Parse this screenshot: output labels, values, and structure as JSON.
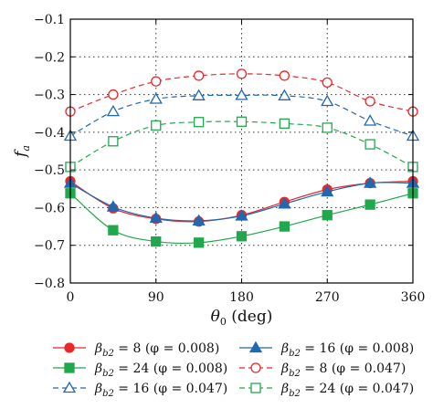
{
  "chart_data": {
    "type": "line",
    "xlabel": "θ0 (deg)",
    "xlabel_main": "θ",
    "xlabel_sub": "0",
    "xlabel_tail": " (deg)",
    "ylabel": "fa",
    "ylabel_main": "f",
    "ylabel_sub": "a",
    "xlim": [
      0,
      360
    ],
    "ylim": [
      -0.8,
      -0.1
    ],
    "xticks": [
      0,
      90,
      180,
      270,
      360
    ],
    "yticks": [
      -0.1,
      -0.2,
      -0.3,
      -0.4,
      -0.5,
      -0.6,
      -0.7,
      -0.8
    ],
    "ytick_labels": [
      "−0.1",
      "−0.2",
      "−0.3",
      "−0.4",
      "−0.5",
      "−0.6",
      "−0.7",
      "−0.8"
    ],
    "grid": true,
    "legend_position": "bottom",
    "series": [
      {
        "name": "βb2 = 8 (φ = 0.008)",
        "label_main": "β",
        "label_sub": "b2",
        "label_tail": " = 8 (φ = 0.008)",
        "color": "#e8282b",
        "marker": "circle-filled",
        "dash": "solid",
        "x": [
          0,
          45,
          90,
          135,
          180,
          225,
          270,
          315,
          360
        ],
        "y": [
          -0.53,
          -0.602,
          -0.63,
          -0.637,
          -0.62,
          -0.585,
          -0.552,
          -0.535,
          -0.53
        ]
      },
      {
        "name": "βb2 = 16 (φ = 0.008)",
        "label_main": "β",
        "label_sub": "b2",
        "label_tail": " = 16 (φ = 0.008)",
        "color": "#2068b0",
        "marker": "triangle-filled",
        "dash": "solid",
        "x": [
          0,
          45,
          90,
          135,
          180,
          225,
          270,
          315,
          360
        ],
        "y": [
          -0.535,
          -0.598,
          -0.628,
          -0.635,
          -0.622,
          -0.59,
          -0.558,
          -0.535,
          -0.535
        ]
      },
      {
        "name": "βb2 = 24 (φ = 0.008)",
        "label_main": "β",
        "label_sub": "b2",
        "label_tail": " = 24 (φ = 0.008)",
        "color": "#21a84c",
        "marker": "square-filled",
        "dash": "solid",
        "x": [
          0,
          45,
          90,
          135,
          180,
          225,
          270,
          315,
          360
        ],
        "y": [
          -0.562,
          -0.66,
          -0.69,
          -0.693,
          -0.676,
          -0.65,
          -0.62,
          -0.592,
          -0.562
        ]
      },
      {
        "name": "βb2 = 8 (φ = 0.047)",
        "label_main": "β",
        "label_sub": "b2",
        "label_tail": " = 8 (φ = 0.047)",
        "color": "#e8282b",
        "marker": "circle-open",
        "dash": "dashed",
        "x": [
          0,
          45,
          90,
          135,
          180,
          225,
          270,
          315,
          360
        ],
        "y": [
          -0.345,
          -0.3,
          -0.265,
          -0.25,
          -0.245,
          -0.25,
          -0.268,
          -0.318,
          -0.345
        ]
      },
      {
        "name": "βb2 = 16 (φ = 0.047)",
        "label_main": "β",
        "label_sub": "b2",
        "label_tail": " = 16 (φ = 0.047)",
        "color": "#2068b0",
        "marker": "triangle-open",
        "dash": "dashed",
        "x": [
          0,
          45,
          90,
          135,
          180,
          225,
          270,
          315,
          360
        ],
        "y": [
          -0.41,
          -0.345,
          -0.312,
          -0.303,
          -0.302,
          -0.303,
          -0.318,
          -0.37,
          -0.41
        ]
      },
      {
        "name": "βb2 = 24 (φ = 0.047)",
        "label_main": "β",
        "label_sub": "b2",
        "label_tail": " = 24 (φ = 0.047)",
        "color": "#21a84c",
        "marker": "square-open",
        "dash": "dashed",
        "x": [
          0,
          45,
          90,
          135,
          180,
          225,
          270,
          315,
          360
        ],
        "y": [
          -0.492,
          -0.424,
          -0.382,
          -0.373,
          -0.372,
          -0.377,
          -0.388,
          -0.432,
          -0.492
        ]
      }
    ],
    "legend_order": [
      0,
      1,
      2,
      3,
      4,
      5
    ]
  }
}
